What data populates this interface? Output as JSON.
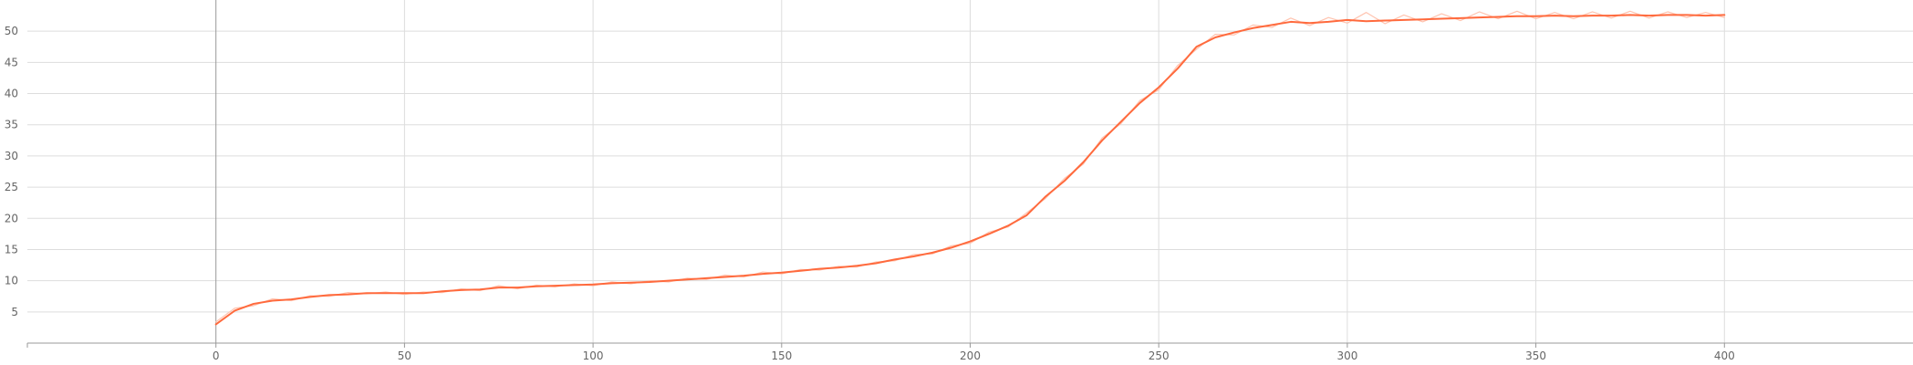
{
  "chart_data": {
    "type": "line",
    "title": "",
    "xlabel": "",
    "ylabel": "",
    "xlim": [
      -50,
      450
    ],
    "ylim": [
      0,
      55
    ],
    "x_ticks": [
      0,
      50,
      100,
      150,
      200,
      250,
      300,
      350,
      400
    ],
    "y_ticks": [
      5,
      10,
      15,
      20,
      25,
      30,
      35,
      40,
      45,
      50
    ],
    "x_tick_labels": [
      "0",
      "50",
      "100",
      "150",
      "200",
      "250",
      "300",
      "350",
      "400"
    ],
    "y_tick_labels": [
      "5",
      "10",
      "15",
      "20",
      "25",
      "30",
      "35",
      "40",
      "45",
      "50"
    ],
    "grid": true,
    "legend": "none",
    "colors": {
      "smoothed": "#ff6a3d",
      "raw": "#ffc4b0"
    },
    "series": [
      {
        "role": "smoothed",
        "x": [
          0,
          5,
          10,
          15,
          20,
          25,
          30,
          35,
          40,
          45,
          50,
          55,
          60,
          65,
          70,
          75,
          80,
          85,
          90,
          95,
          100,
          105,
          110,
          115,
          120,
          125,
          130,
          135,
          140,
          145,
          150,
          155,
          160,
          165,
          170,
          175,
          180,
          185,
          190,
          195,
          200,
          205,
          210,
          215,
          220,
          225,
          230,
          235,
          240,
          245,
          250,
          255,
          260,
          265,
          270,
          275,
          280,
          285,
          290,
          295,
          300,
          305,
          310,
          315,
          320,
          325,
          330,
          335,
          340,
          345,
          350,
          355,
          360,
          365,
          370,
          375,
          380,
          385,
          390,
          395,
          400
        ],
        "values": [
          3,
          5.2,
          6.3,
          6.8,
          7.0,
          7.4,
          7.7,
          7.8,
          8.0,
          8.0,
          8.0,
          8.0,
          8.3,
          8.5,
          8.6,
          8.9,
          8.9,
          9.1,
          9.2,
          9.3,
          9.4,
          9.6,
          9.7,
          9.8,
          10.0,
          10.2,
          10.4,
          10.6,
          10.8,
          11.1,
          11.3,
          11.6,
          11.9,
          12.1,
          12.4,
          12.8,
          13.4,
          13.9,
          14.5,
          15.3,
          16.3,
          17.5,
          18.8,
          20.5,
          23.5,
          26.0,
          29.0,
          32.5,
          35.5,
          38.5,
          41.0,
          44.0,
          47.5,
          49.0,
          49.8,
          50.5,
          51.0,
          51.5,
          51.3,
          51.5,
          51.8,
          51.6,
          51.7,
          51.8,
          51.9,
          52.0,
          52.1,
          52.2,
          52.3,
          52.4,
          52.4,
          52.5,
          52.4,
          52.5,
          52.5,
          52.6,
          52.5,
          52.6,
          52.6,
          52.5,
          52.6
        ]
      },
      {
        "role": "raw",
        "x": [
          0,
          5,
          10,
          15,
          20,
          25,
          30,
          35,
          40,
          45,
          50,
          55,
          60,
          65,
          70,
          75,
          80,
          85,
          90,
          95,
          100,
          105,
          110,
          115,
          120,
          125,
          130,
          135,
          140,
          145,
          150,
          155,
          160,
          165,
          170,
          175,
          180,
          185,
          190,
          195,
          200,
          205,
          210,
          215,
          220,
          225,
          230,
          235,
          240,
          245,
          250,
          255,
          260,
          265,
          270,
          275,
          280,
          285,
          290,
          295,
          300,
          305,
          310,
          315,
          320,
          325,
          330,
          335,
          340,
          345,
          350,
          355,
          360,
          365,
          370,
          375,
          380,
          385,
          390,
          395,
          400
        ],
        "values": [
          3.4,
          5.6,
          6.0,
          7.1,
          6.8,
          7.6,
          7.5,
          8.1,
          7.9,
          8.2,
          7.8,
          8.2,
          8.1,
          8.7,
          8.4,
          9.2,
          8.7,
          9.3,
          9.0,
          9.5,
          9.2,
          9.8,
          9.5,
          10.0,
          9.8,
          10.4,
          10.2,
          10.9,
          10.6,
          11.4,
          11.1,
          11.8,
          11.7,
          12.3,
          12.2,
          13.0,
          13.2,
          14.2,
          14.3,
          15.6,
          16.0,
          17.8,
          18.6,
          20.9,
          23.2,
          26.4,
          28.7,
          32.9,
          35.2,
          38.9,
          40.6,
          44.5,
          47.1,
          49.5,
          49.4,
          51.0,
          50.6,
          52.1,
          50.9,
          52.2,
          51.3,
          53.0,
          51.2,
          52.6,
          51.5,
          52.8,
          51.7,
          53.1,
          52.0,
          53.2,
          52.0,
          53.0,
          52.0,
          53.1,
          52.1,
          53.2,
          52.1,
          53.1,
          52.2,
          53.0,
          52.2
        ]
      }
    ]
  }
}
